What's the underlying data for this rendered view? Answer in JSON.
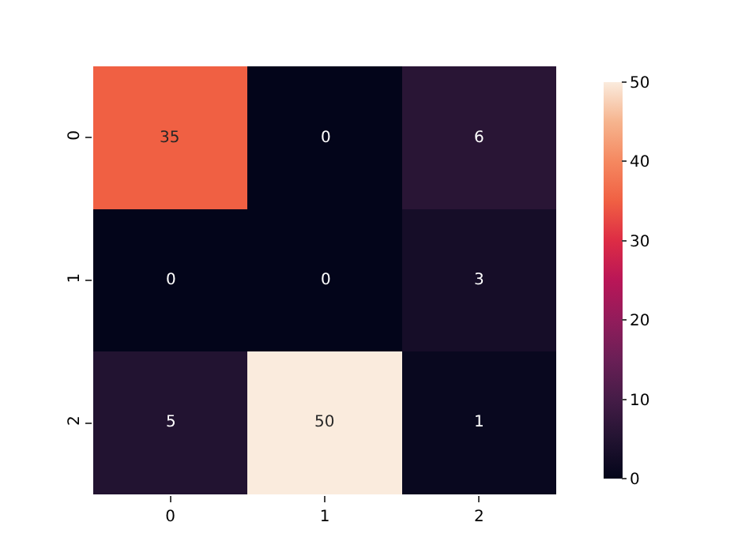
{
  "chart_data": {
    "type": "heatmap",
    "categories": [
      "0",
      "1",
      "2"
    ],
    "y_categories": [
      "0",
      "1",
      "2"
    ],
    "cells": [
      [
        35,
        0,
        6
      ],
      [
        0,
        0,
        3
      ],
      [
        5,
        50,
        1
      ]
    ],
    "clim": [
      0,
      50
    ],
    "cticks": [
      0,
      10,
      20,
      30,
      40,
      50
    ],
    "data_labels": true
  }
}
